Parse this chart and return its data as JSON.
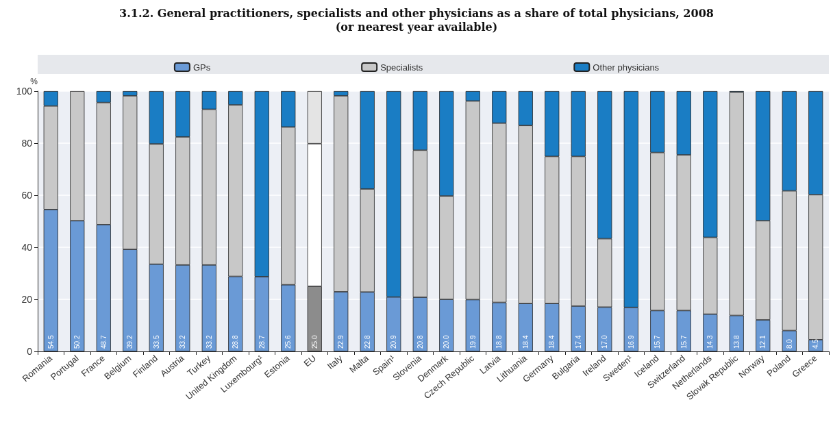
{
  "chart_data": {
    "type": "bar",
    "stacked": true,
    "title": "3.1.2. General practitioners, specialists and other physicians as a share of total physicians, 2008",
    "subtitle": "(or nearest year available)",
    "ylabel": "%",
    "categories": [
      "Romania",
      "Portugal",
      "France",
      "Belgium",
      "Finland",
      "Austria",
      "Turkey",
      "United Kingdom",
      "Luxembourg¹",
      "Estonia",
      "EU",
      "Italy",
      "Malta",
      "Spain¹",
      "Slovenia",
      "Denmark",
      "Czech Republic",
      "Latvia",
      "Lithuania",
      "Germany",
      "Bulgaria",
      "Ireland",
      "Sweden¹",
      "Iceland",
      "Switzerland",
      "Netherlands",
      "Slovak Republic",
      "Norway",
      "Poland",
      "Greece"
    ],
    "series": [
      {
        "name": "GPs",
        "color": "#6a9ad6",
        "colors": [
          "#6a9ad6",
          "#6a9ad6",
          "#6a9ad6",
          "#6a9ad6",
          "#6a9ad6",
          "#6a9ad6",
          "#6a9ad6",
          "#6a9ad6",
          "#6a9ad6",
          "#6a9ad6",
          "#8c8c8c",
          "#6a9ad6",
          "#6a9ad6",
          "#6a9ad6",
          "#6a9ad6",
          "#6a9ad6",
          "#6a9ad6",
          "#6a9ad6",
          "#6a9ad6",
          "#6a9ad6",
          "#6a9ad6",
          "#6a9ad6",
          "#6a9ad6",
          "#6a9ad6",
          "#6a9ad6",
          "#6a9ad6",
          "#6a9ad6",
          "#6a9ad6",
          "#6a9ad6",
          "#6a9ad6"
        ],
        "values": [
          54.5,
          50.2,
          48.7,
          39.2,
          33.5,
          33.2,
          33.2,
          28.8,
          28.7,
          25.6,
          25.0,
          22.9,
          22.8,
          20.9,
          20.8,
          20.0,
          19.9,
          18.8,
          18.4,
          18.4,
          17.4,
          17.0,
          16.9,
          15.7,
          15.7,
          14.3,
          13.8,
          12.1,
          8.0,
          4.5
        ],
        "value_labels": [
          "54.5",
          "50.2",
          "48.7",
          "39.2",
          "33.5",
          "33.2",
          "33.2",
          "28.8",
          "28.7",
          "25.6",
          "25.0",
          "22.9",
          "22.8",
          "20.9",
          "20.8",
          "20.0",
          "19.9",
          "18.8",
          "18.4",
          "18.4",
          "17.4",
          "17.0",
          "16.9",
          "15.7",
          "15.7",
          "14.3",
          "13.8",
          "12.1",
          "8.0",
          "4.5"
        ]
      },
      {
        "name": "Specialists",
        "color": "#c8c8c8",
        "colors": [
          "#c8c8c8",
          "#c8c8c8",
          "#c8c8c8",
          "#c8c8c8",
          "#c8c8c8",
          "#c8c8c8",
          "#c8c8c8",
          "#c8c8c8",
          "#c8c8c8",
          "#c8c8c8",
          "#ffffff",
          "#c8c8c8",
          "#c8c8c8",
          "#c8c8c8",
          "#c8c8c8",
          "#c8c8c8",
          "#c8c8c8",
          "#c8c8c8",
          "#c8c8c8",
          "#c8c8c8",
          "#c8c8c8",
          "#c8c8c8",
          "#c8c8c8",
          "#c8c8c8",
          "#c8c8c8",
          "#c8c8c8",
          "#c8c8c8",
          "#c8c8c8",
          "#c8c8c8",
          "#c8c8c8"
        ],
        "values": [
          39.8,
          49.8,
          46.9,
          59.0,
          46.2,
          49.2,
          59.8,
          65.9,
          0,
          60.6,
          54.8,
          75.3,
          39.6,
          0,
          56.5,
          39.7,
          76.3,
          68.9,
          68.4,
          56.5,
          57.5,
          26.3,
          0,
          60.7,
          59.8,
          29.5,
          85.8,
          38.1,
          53.7,
          55.7
        ]
      },
      {
        "name": "Other physicians",
        "color": "#1a7dc4",
        "colors": [
          "#1a7dc4",
          "#1a7dc4",
          "#1a7dc4",
          "#1a7dc4",
          "#1a7dc4",
          "#1a7dc4",
          "#1a7dc4",
          "#1a7dc4",
          "#1a7dc4",
          "#1a7dc4",
          "#e4e4e4",
          "#1a7dc4",
          "#1a7dc4",
          "#1a7dc4",
          "#1a7dc4",
          "#1a7dc4",
          "#1a7dc4",
          "#1a7dc4",
          "#1a7dc4",
          "#1a7dc4",
          "#1a7dc4",
          "#1a7dc4",
          "#1a7dc4",
          "#1a7dc4",
          "#1a7dc4",
          "#1a7dc4",
          "#1a7dc4",
          "#1a7dc4",
          "#1a7dc4",
          "#1a7dc4"
        ],
        "values": [
          5.7,
          0,
          4.4,
          1.8,
          20.3,
          17.6,
          7.0,
          5.3,
          71.3,
          13.8,
          20.2,
          1.8,
          37.6,
          79.1,
          22.7,
          40.3,
          3.8,
          12.3,
          13.2,
          25.1,
          25.1,
          56.7,
          83.1,
          23.6,
          24.5,
          56.2,
          0.4,
          49.8,
          38.3,
          39.8
        ]
      }
    ],
    "ylim": [
      0,
      100
    ],
    "yticks": [
      0,
      20,
      40,
      60,
      80,
      100
    ],
    "grid": "y",
    "legend": "top"
  }
}
